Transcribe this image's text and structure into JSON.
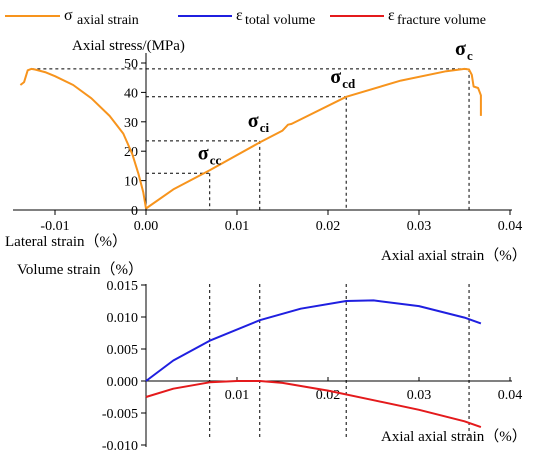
{
  "chart_data": [
    {
      "type": "line",
      "xlabel_left": "Lateral strain（%）",
      "xlabel_right": "Axial axial strain（%）",
      "ylabel": "Axial stress/(MPa)",
      "xlim": [
        -0.015,
        0.04
      ],
      "ylim": [
        0,
        55
      ],
      "xticks": [
        "-0.01",
        "0.00",
        "0.01",
        "0.02",
        "0.03",
        "0.04"
      ],
      "yticks": [
        "0",
        "10",
        "20",
        "30",
        "40",
        "50"
      ],
      "series": [
        {
          "name": "σaxial strain",
          "color": "#F7941D",
          "branch": "axial",
          "x": [
            0.0,
            0.003,
            0.007,
            0.0125,
            0.015,
            0.0156,
            0.016,
            0.022,
            0.028,
            0.033,
            0.035,
            0.0355,
            0.0358,
            0.036,
            0.0365,
            0.0368,
            0.0368
          ],
          "y": [
            0.5,
            7,
            13.5,
            23,
            27,
            29,
            29.3,
            38.5,
            44,
            47.2,
            48,
            47.8,
            46,
            42,
            41.5,
            39,
            32
          ]
        },
        {
          "name": "σaxial strain",
          "color": "#F7941D",
          "branch": "lateral",
          "x": [
            0.0,
            -0.0003,
            -0.0008,
            -0.0015,
            -0.0025,
            -0.004,
            -0.006,
            -0.008,
            -0.01,
            -0.011,
            -0.0122,
            -0.0126,
            -0.013,
            -0.0134,
            -0.0138
          ],
          "y": [
            0.5,
            6,
            12,
            19,
            26,
            32,
            38,
            42.5,
            45.5,
            46.8,
            47.8,
            48,
            47.5,
            43.5,
            42.5
          ]
        }
      ],
      "thresholds": [
        {
          "label": "σ",
          "sub": "cc",
          "x": 0.007,
          "y": 12.5
        },
        {
          "label": "σ",
          "sub": "ci",
          "x": 0.0125,
          "y": 23.5
        },
        {
          "label": "σ",
          "sub": "cd",
          "x": 0.022,
          "y": 38.5
        },
        {
          "label": "σ",
          "sub": "c",
          "x": 0.0355,
          "y": 48
        }
      ]
    },
    {
      "type": "line",
      "ylabel": "Volume strain（%）",
      "xlabel": "Axial axial strain（%）",
      "xlim": [
        -0.001,
        0.04
      ],
      "ylim": [
        -0.01,
        0.015
      ],
      "xticks": [
        "0.00",
        "0.01",
        "0.02",
        "0.03",
        "0.04"
      ],
      "yticks": [
        "-0.010",
        "-0.005",
        "0.000",
        "0.005",
        "0.010",
        "0.015"
      ],
      "series": [
        {
          "name": "εtotal volume",
          "color": "#1F1FE0",
          "x": [
            0.0,
            0.003,
            0.007,
            0.0125,
            0.017,
            0.022,
            0.025,
            0.03,
            0.035,
            0.0368
          ],
          "y": [
            0.0,
            0.0032,
            0.0063,
            0.0095,
            0.0113,
            0.0125,
            0.0126,
            0.0117,
            0.0099,
            0.009
          ]
        },
        {
          "name": "εfracture volume",
          "color": "#E41A1C",
          "x": [
            0.0,
            0.003,
            0.007,
            0.01,
            0.0125,
            0.015,
            0.02,
            0.025,
            0.03,
            0.035,
            0.0368
          ],
          "y": [
            -0.0025,
            -0.0012,
            -0.0002,
            0.0,
            0.0,
            -0.0003,
            -0.0015,
            -0.003,
            -0.0045,
            -0.0063,
            -0.0072
          ]
        }
      ]
    }
  ],
  "legend": [
    {
      "sym": "σ",
      "sub": "axial strain",
      "color": "#F7941D"
    },
    {
      "sym": "ε",
      "sub": "total volume",
      "color": "#1F1FE0"
    },
    {
      "sym": "ε",
      "sub": "fracture volume",
      "color": "#E41A1C"
    }
  ]
}
